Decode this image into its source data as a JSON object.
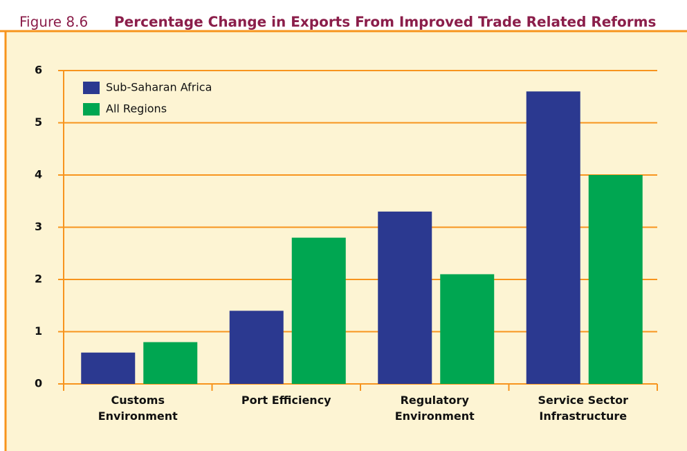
{
  "chart_data": {
    "type": "bar",
    "figure_label": "Figure 8.6",
    "title": "Percentage Change in Exports From Improved Trade Related Reforms",
    "categories": [
      [
        "Customs",
        "Environment"
      ],
      [
        "Port Efficiency"
      ],
      [
        "Regulatory",
        "Environment"
      ],
      [
        "Service Sector",
        "Infrastructure"
      ]
    ],
    "series": [
      {
        "name": "Sub-Saharan Africa",
        "color": "#2b3990",
        "values": [
          0.6,
          1.4,
          3.3,
          5.6
        ]
      },
      {
        "name": "All Regions",
        "color": "#00a651",
        "values": [
          0.8,
          2.8,
          2.1,
          4.0
        ]
      }
    ],
    "ylim": [
      0,
      6
    ],
    "yticks": [
      0,
      1,
      2,
      3,
      4,
      5,
      6
    ],
    "grid": true
  }
}
